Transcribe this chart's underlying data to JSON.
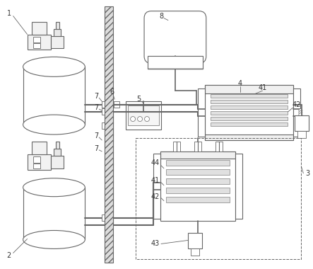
{
  "bg_color": "#ffffff",
  "lc": "#666666",
  "lc_dark": "#444444",
  "label_color": "#333333",
  "figsize": [
    4.43,
    3.8
  ],
  "dpi": 100
}
